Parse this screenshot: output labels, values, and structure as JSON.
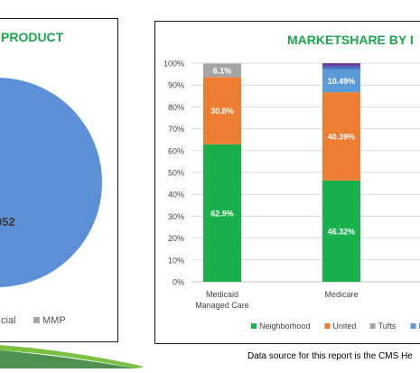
{
  "left_chart": {
    "title": "PRODUCT",
    "slice_label": "052",
    "legend": [
      {
        "name": "cial",
        "color": "#ffffff"
      },
      {
        "name": "MMP",
        "color": "#a6a6a6"
      }
    ]
  },
  "chart_data": {
    "type": "bar",
    "stacked": true,
    "title": "MARKETSHARE BY I",
    "categories": [
      "Medicaid Managed Care",
      "Medicare"
    ],
    "category_lines": [
      [
        "Medicaid",
        "Managed Care"
      ],
      [
        "Medicare"
      ]
    ],
    "yticks": [
      "0%",
      "10%",
      "20%",
      "30%",
      "40%",
      "50%",
      "60%",
      "70%",
      "80%",
      "90%",
      "100%"
    ],
    "ylim": [
      0,
      100
    ],
    "grid": true,
    "legend_position": "bottom",
    "series": [
      {
        "name": "Neighborhood",
        "color": "#19b14b",
        "values": [
          62.9,
          46.32
        ],
        "labels": [
          "62.9%",
          "46.32%"
        ]
      },
      {
        "name": "United",
        "color": "#ed7d31",
        "values": [
          30.8,
          40.39
        ],
        "labels": [
          "30.8%",
          "40.39%"
        ]
      },
      {
        "name": "Tufts",
        "color": "#a5a5a5",
        "values": [
          6.1,
          0
        ],
        "labels": [
          "6.1%",
          ""
        ]
      },
      {
        "name": "B",
        "color": "#5b9bd5",
        "values": [
          0,
          10.49
        ],
        "labels": [
          "",
          "10.49%"
        ]
      },
      {
        "name": "",
        "color": "#4472c4",
        "values": [
          0,
          1.4
        ],
        "labels": [
          "",
          ""
        ]
      },
      {
        "name": "",
        "color": "#6a3d9a",
        "values": [
          0,
          1.4
        ],
        "labels": [
          "",
          ""
        ]
      }
    ]
  },
  "footer": {
    "source": "Data source for this report is the CMS He"
  },
  "colors": {
    "title_green": "#1aa64a",
    "banner_green": "#7ac143",
    "banner_dark": "#2e7d32"
  }
}
